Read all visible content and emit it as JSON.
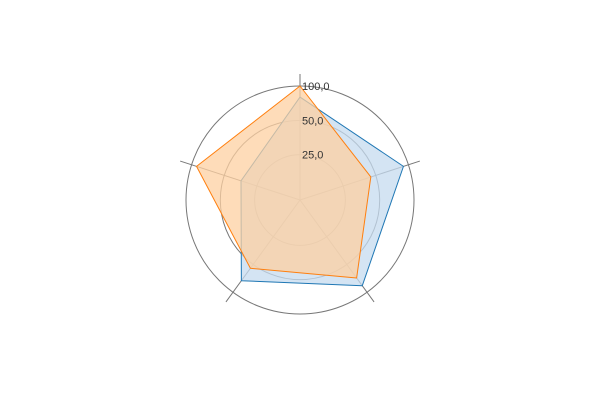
{
  "chart_data": {
    "type": "radar",
    "axis_count": 5,
    "r_scale": "log",
    "r_domain": [
      10,
      100
    ],
    "r_ticks": [
      {
        "value": 25,
        "label": "25,0"
      },
      {
        "value": 50,
        "label": "50,0"
      },
      {
        "value": 100,
        "label": "100,0"
      }
    ],
    "grid": true,
    "series": [
      {
        "values": [
          80,
          90,
          85,
          75,
          35
        ],
        "color": "#1f77b4",
        "fill": "#c6dbef"
      },
      {
        "values": [
          100,
          45,
          70,
          55,
          90
        ],
        "color": "#ff7f0e",
        "fill": "#fdd0a2"
      }
    ]
  }
}
